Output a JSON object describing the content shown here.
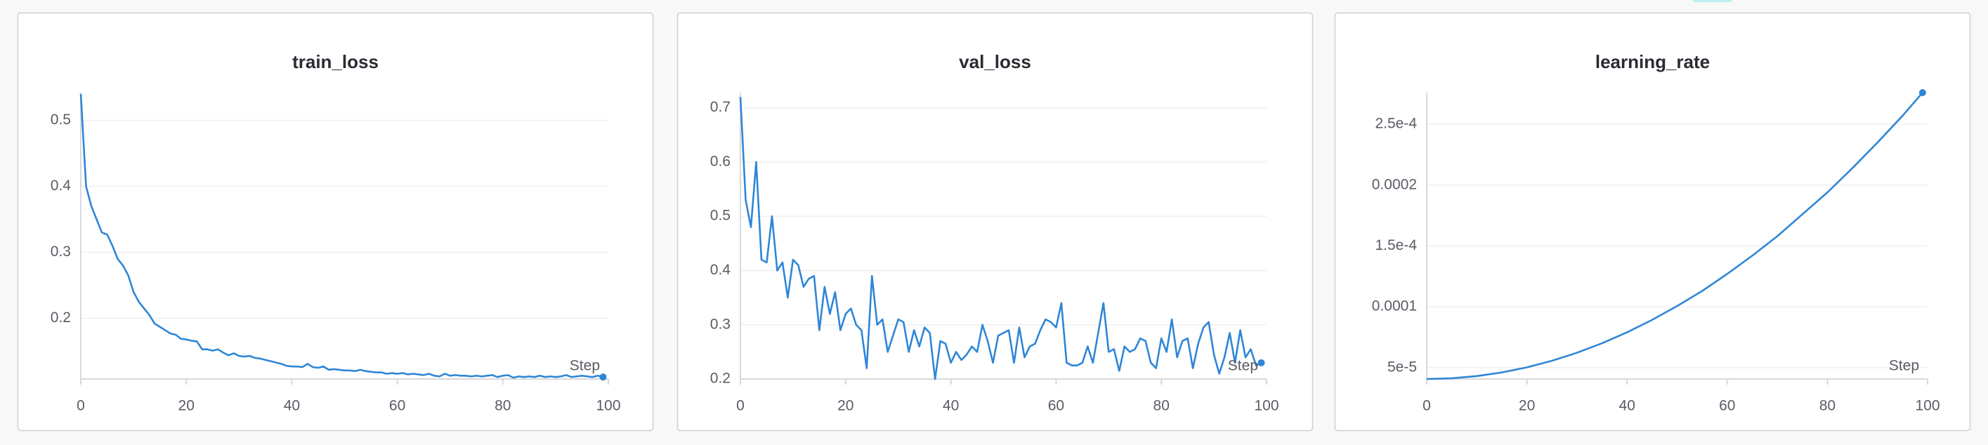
{
  "chart_data": [
    {
      "type": "line",
      "title": "train_loss",
      "xlabel": "Step",
      "color": "#2f86d6",
      "x": [
        0,
        1,
        2,
        3,
        4,
        5,
        6,
        7,
        8,
        9,
        10,
        11,
        12,
        13,
        14,
        15,
        16,
        17,
        18,
        19,
        20,
        21,
        22,
        23,
        24,
        25,
        26,
        27,
        28,
        29,
        30,
        31,
        32,
        33,
        34,
        35,
        36,
        37,
        38,
        39,
        40,
        41,
        42,
        43,
        44,
        45,
        46,
        47,
        48,
        49,
        50,
        51,
        52,
        53,
        54,
        55,
        56,
        57,
        58,
        59,
        60,
        61,
        62,
        63,
        64,
        65,
        66,
        67,
        68,
        69,
        70,
        71,
        72,
        73,
        74,
        75,
        76,
        77,
        78,
        79,
        80,
        81,
        82,
        83,
        84,
        85,
        86,
        87,
        88,
        89,
        90,
        91,
        92,
        93,
        94,
        95,
        96,
        97,
        98,
        99
      ],
      "values": [
        0.54,
        0.4,
        0.37,
        0.35,
        0.33,
        0.327,
        0.31,
        0.29,
        0.28,
        0.265,
        0.24,
        0.225,
        0.215,
        0.205,
        0.192,
        0.187,
        0.182,
        0.177,
        0.175,
        0.169,
        0.168,
        0.166,
        0.165,
        0.153,
        0.153,
        0.151,
        0.153,
        0.148,
        0.144,
        0.147,
        0.143,
        0.142,
        0.143,
        0.14,
        0.139,
        0.137,
        0.135,
        0.133,
        0.131,
        0.128,
        0.127,
        0.127,
        0.126,
        0.131,
        0.126,
        0.125,
        0.127,
        0.122,
        0.123,
        0.122,
        0.121,
        0.121,
        0.12,
        0.122,
        0.12,
        0.119,
        0.118,
        0.118,
        0.116,
        0.117,
        0.116,
        0.117,
        0.115,
        0.116,
        0.115,
        0.114,
        0.116,
        0.113,
        0.112,
        0.116,
        0.113,
        0.114,
        0.113,
        0.113,
        0.112,
        0.113,
        0.112,
        0.113,
        0.114,
        0.111,
        0.113,
        0.114,
        0.11,
        0.112,
        0.111,
        0.112,
        0.111,
        0.113,
        0.111,
        0.112,
        0.111,
        0.112,
        0.114,
        0.111,
        0.112,
        0.113,
        0.112,
        0.111,
        0.113,
        0.111
      ],
      "xlim": [
        0,
        100
      ],
      "xticks": [
        0,
        20,
        40,
        60,
        80,
        100
      ],
      "ylim": [
        0.108,
        0.542
      ],
      "yticks": [
        0.2,
        0.3,
        0.4,
        0.5
      ],
      "grid": true
    },
    {
      "type": "line",
      "title": "val_loss",
      "xlabel": "Step",
      "color": "#2f86d6",
      "x": [
        0,
        1,
        2,
        3,
        4,
        5,
        6,
        7,
        8,
        9,
        10,
        11,
        12,
        13,
        14,
        15,
        16,
        17,
        18,
        19,
        20,
        21,
        22,
        23,
        24,
        25,
        26,
        27,
        28,
        29,
        30,
        31,
        32,
        33,
        34,
        35,
        36,
        37,
        38,
        39,
        40,
        41,
        42,
        43,
        44,
        45,
        46,
        47,
        48,
        49,
        50,
        51,
        52,
        53,
        54,
        55,
        56,
        57,
        58,
        59,
        60,
        61,
        62,
        63,
        64,
        65,
        66,
        67,
        68,
        69,
        70,
        71,
        72,
        73,
        74,
        75,
        76,
        77,
        78,
        79,
        80,
        81,
        82,
        83,
        84,
        85,
        86,
        87,
        88,
        89,
        90,
        91,
        92,
        93,
        94,
        95,
        96,
        97,
        98,
        99
      ],
      "values": [
        0.72,
        0.53,
        0.48,
        0.6,
        0.42,
        0.415,
        0.5,
        0.4,
        0.415,
        0.35,
        0.42,
        0.41,
        0.37,
        0.385,
        0.39,
        0.29,
        0.37,
        0.32,
        0.36,
        0.29,
        0.32,
        0.33,
        0.3,
        0.29,
        0.22,
        0.39,
        0.3,
        0.31,
        0.25,
        0.28,
        0.31,
        0.305,
        0.25,
        0.29,
        0.26,
        0.295,
        0.285,
        0.2,
        0.27,
        0.265,
        0.23,
        0.25,
        0.235,
        0.245,
        0.26,
        0.25,
        0.3,
        0.27,
        0.23,
        0.28,
        0.285,
        0.29,
        0.23,
        0.295,
        0.24,
        0.26,
        0.265,
        0.29,
        0.31,
        0.305,
        0.295,
        0.34,
        0.23,
        0.225,
        0.225,
        0.23,
        0.26,
        0.23,
        0.285,
        0.34,
        0.25,
        0.255,
        0.215,
        0.26,
        0.25,
        0.255,
        0.275,
        0.27,
        0.23,
        0.22,
        0.275,
        0.25,
        0.31,
        0.24,
        0.27,
        0.275,
        0.22,
        0.265,
        0.295,
        0.305,
        0.245,
        0.21,
        0.24,
        0.285,
        0.23,
        0.29,
        0.24,
        0.255,
        0.225,
        0.23
      ],
      "xlim": [
        0,
        100
      ],
      "xticks": [
        0,
        20,
        40,
        60,
        80,
        100
      ],
      "ylim": [
        0.2,
        0.728
      ],
      "yticks": [
        0.2,
        0.3,
        0.4,
        0.5,
        0.6,
        0.7
      ],
      "grid": true
    },
    {
      "type": "line",
      "title": "learning_rate",
      "xlabel": "Step",
      "color": "#2f86d6",
      "x": [
        0,
        5,
        10,
        15,
        20,
        25,
        30,
        35,
        40,
        45,
        50,
        55,
        60,
        65,
        70,
        75,
        80,
        85,
        90,
        95,
        99
      ],
      "values": [
        4.06e-05,
        4.12e-05,
        4.3e-05,
        4.6e-05,
        5.02e-05,
        5.56e-05,
        6.22e-05,
        7e-05,
        7.9e-05,
        8.92e-05,
        0.0001006,
        0.000113,
        0.000127,
        0.000142,
        0.000158,
        0.000176,
        0.000194,
        0.000214,
        0.000235,
        0.000257,
        0.000276
      ],
      "xlim": [
        0,
        100
      ],
      "xticks": [
        0,
        20,
        40,
        60,
        80,
        100
      ],
      "ylim": [
        4.06e-05,
        0.000276
      ],
      "yticks": [
        {
          "value": 5e-05,
          "label": "5e-5"
        },
        0.0001,
        {
          "value": 0.00015,
          "label": "1.5e-4"
        },
        0.0002,
        {
          "value": 0.00025,
          "label": "2.5e-4"
        }
      ],
      "grid": true
    }
  ]
}
